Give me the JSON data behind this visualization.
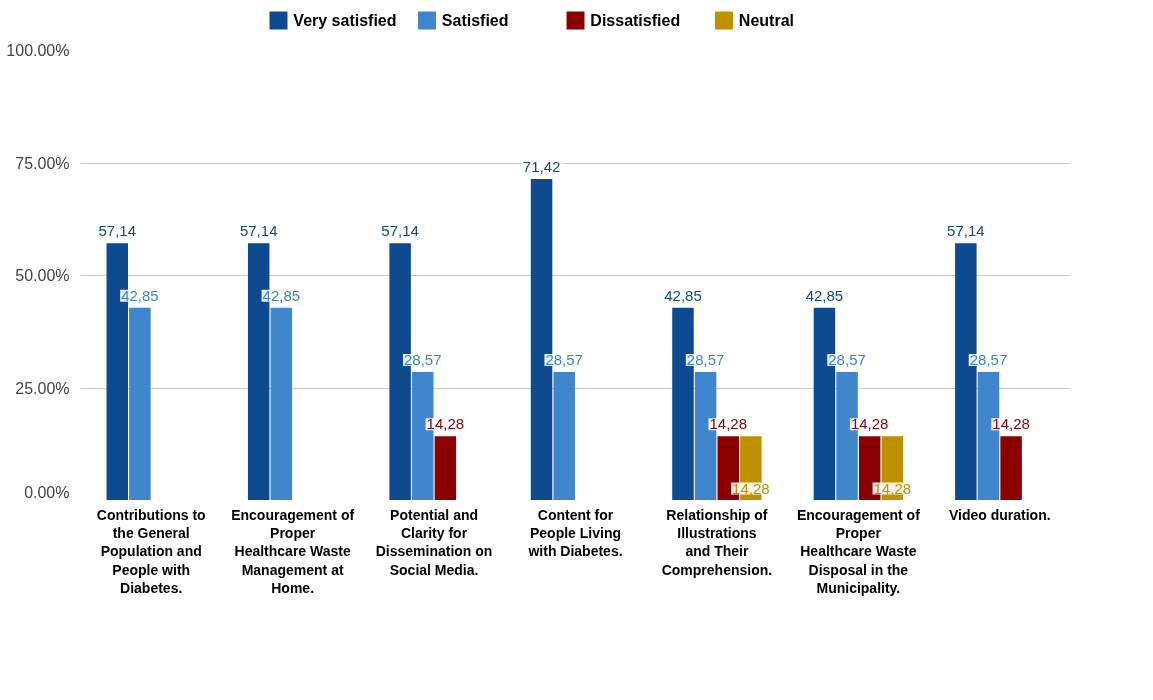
{
  "chart_data": {
    "type": "bar",
    "categories": [
      "Contributions to the General Population and People with Diabetes.",
      "Encouragement of Proper Healthcare Waste Management at Home.",
      "Potential and Clarity for Dissemination on Social Media.",
      "Content for People Living with Diabetes.",
      "Relationship of Illustrations and Their Comprehension.",
      "Encouragement of Proper Healthcare Waste Disposal in the Municipality.",
      "Video duration."
    ],
    "series": [
      {
        "name": "Very satisfied",
        "color": "#0d4a8f",
        "values": [
          57.14,
          57.14,
          57.14,
          71.42,
          42.85,
          42.85,
          57.14
        ],
        "value_labels": [
          "57,14",
          "57,14",
          "57,14",
          "71,42",
          "42,85",
          "42,85",
          "57,14"
        ]
      },
      {
        "name": "Satisfied",
        "color": "#3f86cc",
        "values": [
          42.85,
          42.85,
          28.57,
          28.57,
          28.57,
          28.57,
          28.57
        ],
        "value_labels": [
          "42,85",
          "42,85",
          "28,57",
          "28,57",
          "28,57",
          "28,57",
          "28,57"
        ]
      },
      {
        "name": "Dissatisfied",
        "color": "#8b0000",
        "values": [
          null,
          null,
          14.28,
          null,
          14.28,
          14.28,
          14.28
        ],
        "value_labels": [
          null,
          null,
          "14,28",
          null,
          "14,28",
          "14,28",
          "14,28"
        ]
      },
      {
        "name": "Neutral",
        "color": "#bf9000",
        "values": [
          null,
          null,
          null,
          null,
          14.28,
          14.28,
          null
        ],
        "value_labels": [
          null,
          null,
          null,
          null,
          "14,28",
          "14,28",
          null
        ]
      }
    ],
    "ylim": [
      0,
      100
    ],
    "yticks": [
      {
        "value": 0,
        "label": "0.00%"
      },
      {
        "value": 25,
        "label": "25.00%"
      },
      {
        "value": 50,
        "label": "50.00%"
      },
      {
        "value": 75,
        "label": "75.00%"
      },
      {
        "value": 100,
        "label": "100.00%"
      }
    ],
    "grid": "y",
    "legend": "top"
  }
}
